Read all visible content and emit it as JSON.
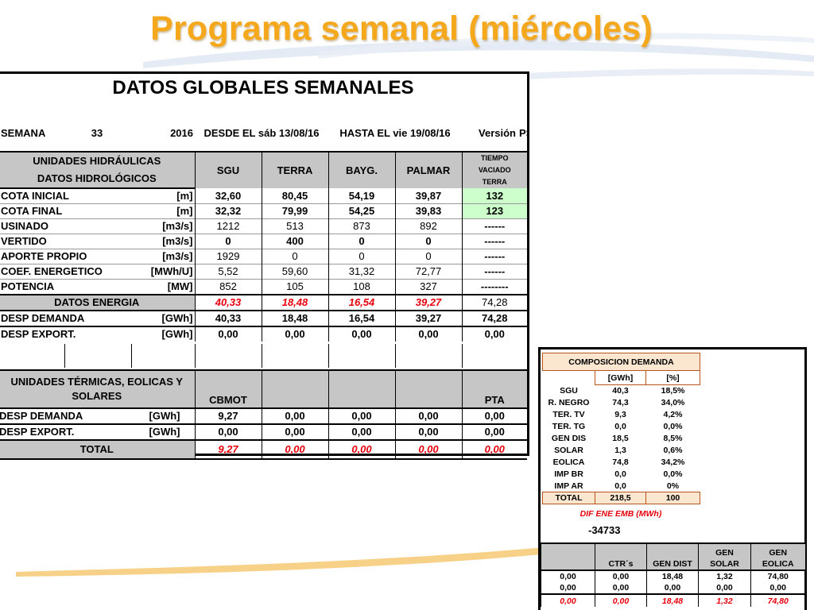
{
  "slide": {
    "title": "Programa semanal (miércoles)"
  },
  "main": {
    "heading": "DATOS GLOBALES SEMANALES",
    "week": {
      "semana_label": "SEMANA",
      "week_no": "33",
      "year": "2016",
      "desde": "DESDE EL sáb 13/08/16",
      "hasta": "HASTA EL  vie 19/08/16",
      "version": "Versión",
      "ps": "PS"
    },
    "hydro_header": {
      "line1": "UNIDADES HIDRÁULICAS",
      "line2": "DATOS HIDROLÓGICOS",
      "cols": [
        "SGU",
        "TERRA",
        "BAYG.",
        "PALMAR"
      ],
      "tiempo": [
        "TIEMPO",
        "VACIADO",
        "TERRA"
      ]
    },
    "hydro_rows": [
      {
        "label": "COTA INICIAL",
        "unit": "[m]",
        "v": [
          "32,60",
          "80,45",
          "54,19",
          "39,87",
          "132"
        ]
      },
      {
        "label": "COTA FINAL",
        "unit": "[m]",
        "v": [
          "32,32",
          "79,99",
          "54,25",
          "39,83",
          "123"
        ]
      },
      {
        "label": "USINADO",
        "unit": "[m3/s]",
        "v": [
          "1212",
          "513",
          "873",
          "892",
          "------"
        ]
      },
      {
        "label": "VERTIDO",
        "unit": "[m3/s]",
        "v": [
          "0",
          "400",
          "0",
          "0",
          "------"
        ]
      },
      {
        "label": "APORTE PROPIO",
        "unit": "[m3/s]",
        "v": [
          "1929",
          "0",
          "0",
          "0",
          "------"
        ]
      },
      {
        "label": "COEF. ENERGETICO",
        "unit": "[MWh/U]",
        "v": [
          "5,52",
          "59,60",
          "31,32",
          "72,77",
          "------"
        ]
      },
      {
        "label": "POTENCIA",
        "unit": "[MW]",
        "v": [
          "852",
          "105",
          "108",
          "327",
          "--------"
        ]
      }
    ],
    "energia": {
      "label": "DATOS ENERGIA",
      "v": [
        "40,33",
        "18,48",
        "16,54",
        "39,27",
        "74,28"
      ]
    },
    "desp_h": [
      {
        "label": "DESP DEMANDA",
        "unit": "[GWh]",
        "v": [
          "40,33",
          "18,48",
          "16,54",
          "39,27",
          "74,28"
        ]
      },
      {
        "label": "DESP EXPORT.",
        "unit": "[GWh]",
        "v": [
          "0,00",
          "0,00",
          "0,00",
          "0,00",
          "0,00"
        ]
      }
    ],
    "thermal_header": {
      "line1": "UNIDADES TÉRMICAS, EOLICAS Y",
      "line2": "SOLARES",
      "col1": "CBMOT",
      "col5": "PTA"
    },
    "desp_t": [
      {
        "label": "DESP DEMANDA",
        "unit": "[GWh]",
        "v": [
          "9,27",
          "0,00",
          "0,00",
          "0,00",
          "0,00"
        ]
      },
      {
        "label": "DESP EXPORT.",
        "unit": "[GWh]",
        "v": [
          "0,00",
          "0,00",
          "0,00",
          "0,00",
          "0,00"
        ]
      }
    ],
    "total": {
      "label": "TOTAL",
      "v": [
        "9,27",
        "0,00",
        "0,00",
        "0,00",
        "0,00"
      ]
    }
  },
  "composition": {
    "title": "COMPOSICION DEMANDA",
    "unit_gwh": "[GWh]",
    "unit_pct": "[%]",
    "rows": [
      {
        "label": "SGU",
        "gwh": "40,3",
        "pct": "18,5%"
      },
      {
        "label": "R. NEGRO",
        "gwh": "74,3",
        "pct": "34,0%"
      },
      {
        "label": "TER. TV",
        "gwh": "9,3",
        "pct": "4,2%"
      },
      {
        "label": "TER. TG",
        "gwh": "0,0",
        "pct": "0,0%"
      },
      {
        "label": "GEN DIS",
        "gwh": "18,5",
        "pct": "8,5%"
      },
      {
        "label": "SOLAR",
        "gwh": "1,3",
        "pct": "0,6%"
      },
      {
        "label": "EOLICA",
        "gwh": "74,8",
        "pct": "34,2%"
      },
      {
        "label": "IMP BR",
        "gwh": "0,0",
        "pct": "0,0%"
      },
      {
        "label": "IMP AR",
        "gwh": "0,0",
        "pct": "0%"
      }
    ],
    "total": {
      "label": "TOTAL",
      "gwh": "218,5",
      "pct": "100"
    },
    "dif_label": "DIF ENE EMB (MWh)",
    "dif_value": "-34733",
    "gen_header": [
      "",
      "CTR´s",
      "GEN DIST",
      "GEN SOLAR",
      "GEN EOLICA"
    ],
    "gen_rows": [
      [
        "0,00",
        "0,00",
        "18,48",
        "1,32",
        "74,80"
      ],
      [
        "0,00",
        "0,00",
        "0,00",
        "0,00",
        "0,00"
      ]
    ],
    "gen_total": [
      "0,00",
      "0,00",
      "18,48",
      "1,32",
      "74,80"
    ]
  },
  "colors": {
    "title": "#f5a81c",
    "red_values": "#e8000d",
    "header_gray": "#c6c6c6",
    "green_cell": "#ccffcc",
    "tan_cell": "#fbe7cf"
  }
}
